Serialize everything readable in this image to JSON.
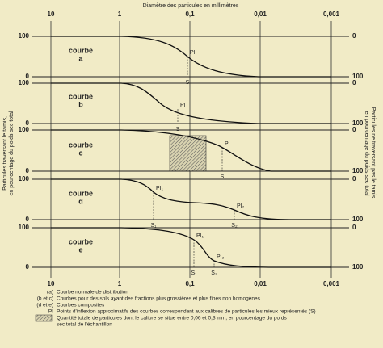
{
  "title": "Diamètre des particules en millimètres",
  "left_label": [
    "Particules traversant le tamis,",
    "en pourcentage du poids sec total"
  ],
  "right_label": [
    "Particules ne traversant pas le tamis,",
    "en pourcentage du poids sec total"
  ],
  "axis_labels": [
    "10",
    "1",
    "0,1",
    "0,01",
    "0,001"
  ],
  "bottom_axis_labels": [
    "10",
    "1",
    "0,1",
    "0,01",
    "0,001"
  ],
  "panels": [
    {
      "label": "courbe",
      "letter": "a",
      "left_ticks": [
        "100",
        "0"
      ],
      "right_ticks": [
        "0",
        "100"
      ],
      "pi": [
        "PI"
      ],
      "s": [
        "S"
      ]
    },
    {
      "label": "courbe",
      "letter": "b",
      "left_ticks": [
        "100",
        "0"
      ],
      "right_ticks": [
        "0",
        "100"
      ],
      "pi": [
        "PI"
      ],
      "s": [
        "S"
      ]
    },
    {
      "label": "courbe",
      "letter": "c",
      "left_ticks": [
        "100",
        "0"
      ],
      "right_ticks": [
        "0",
        "100"
      ],
      "pi": [
        "PI"
      ],
      "s": [
        "S"
      ]
    },
    {
      "label": "courbe",
      "letter": "d",
      "left_ticks": [
        "100",
        "0"
      ],
      "right_ticks": [
        "0",
        "100"
      ],
      "pi": [
        "PI₁",
        "PI₂"
      ],
      "s": [
        "S₁",
        "S₂"
      ]
    },
    {
      "label": "courbe",
      "letter": "e",
      "left_ticks": [
        "100",
        "0"
      ],
      "right_ticks": [
        "0",
        "100"
      ],
      "pi": [
        "PI₁",
        "PI₂"
      ],
      "s": [
        "S₁",
        "S₂"
      ]
    }
  ],
  "legend": [
    {
      "key": "(a)",
      "text": "Courbe normale de distribution"
    },
    {
      "key": "(b et c)",
      "text": "Courbes pour des sols ayant des fractions plus grossières et plus fines non homogènes"
    },
    {
      "key": "(d et e)",
      "text": "Courbes composites"
    },
    {
      "key": "PI",
      "text": "Points d'inflexion approximatifs des courbes correspondant aux calibres de particules les mieux représentés (S)"
    },
    {
      "text": [
        "Quantité totale de particules dont le calibre se situe entre 0,06 et 0,3 mm, en pourcentage du po ds",
        "sec total de l'échantillon"
      ]
    }
  ]
}
